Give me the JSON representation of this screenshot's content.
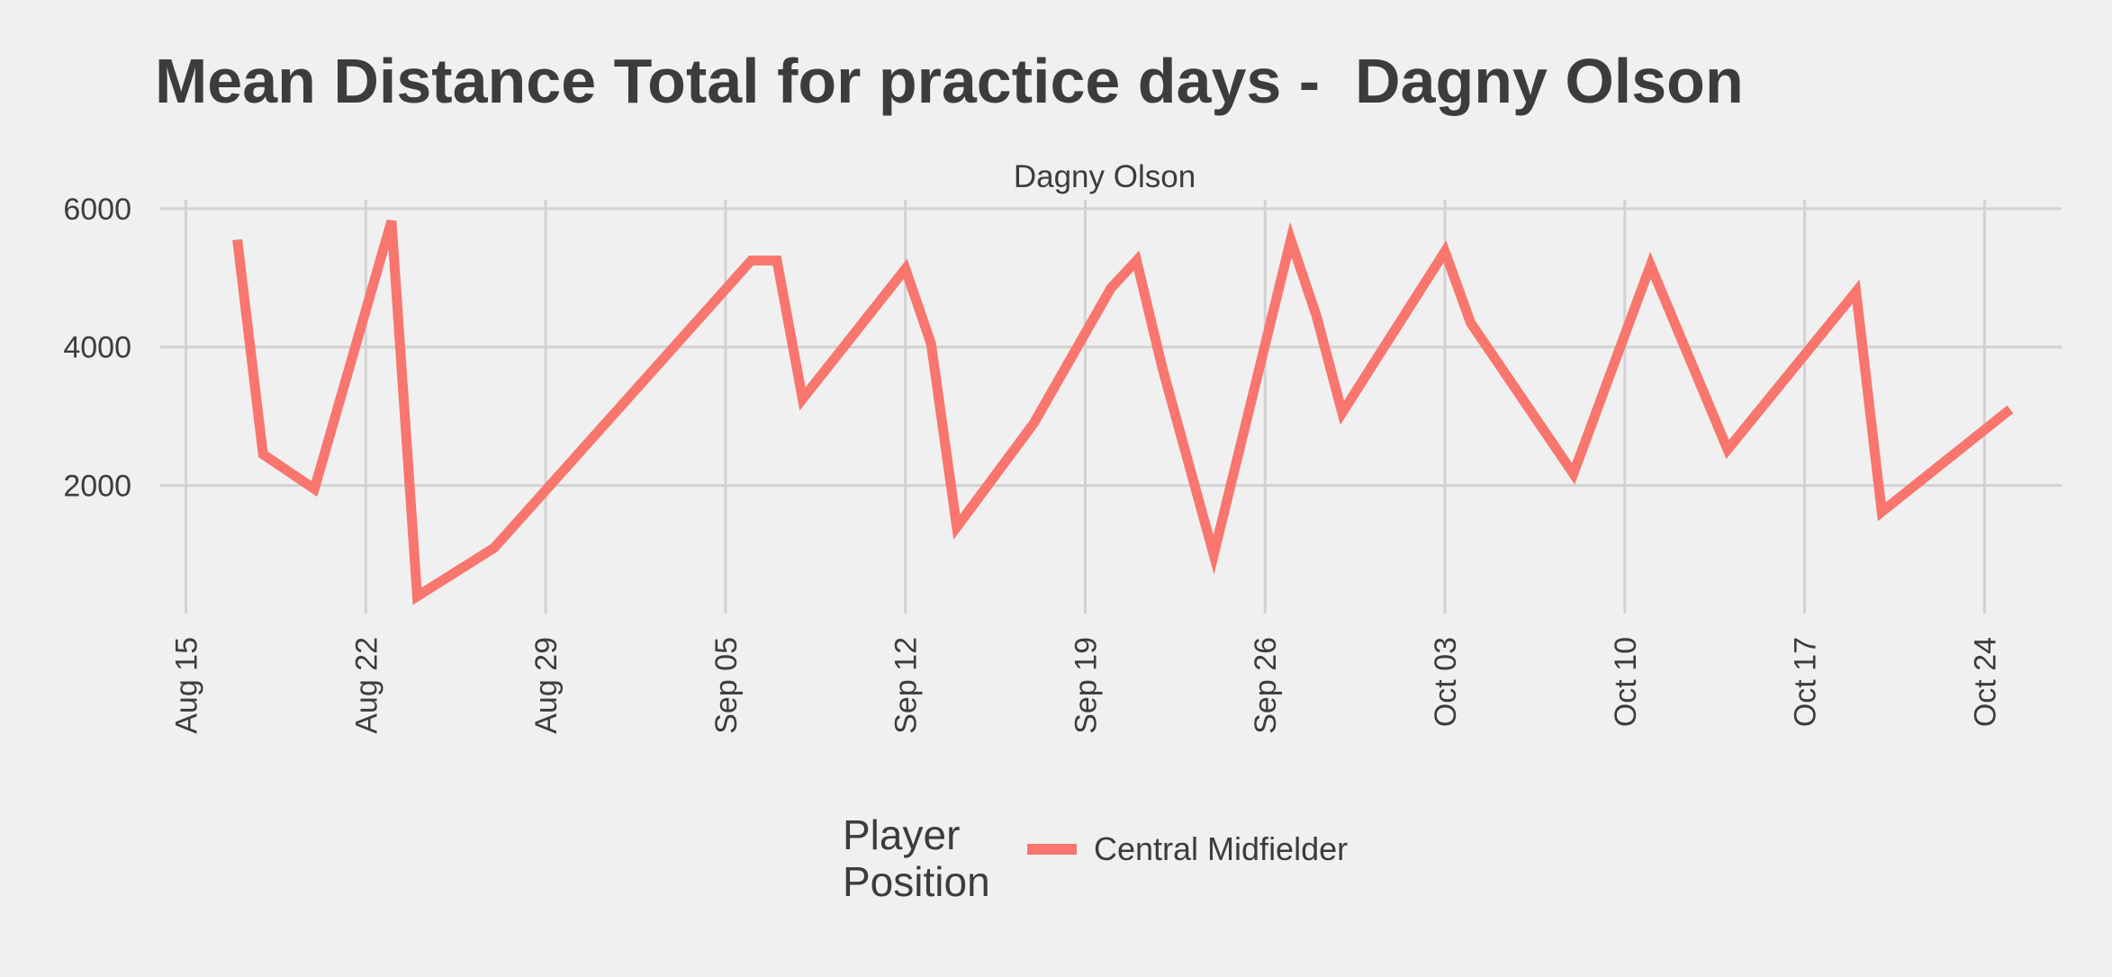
{
  "chart_data": {
    "type": "line",
    "title": "Mean Distance Total for practice days -  Dagny Olson",
    "facet_label": "Dagny Olson",
    "xlabel": "",
    "ylabel": "",
    "x_type": "date",
    "xlim": [
      "2021-08-14",
      "2021-10-27"
    ],
    "ylim": [
      150,
      6050
    ],
    "y_ticks": [
      2000,
      4000,
      6000
    ],
    "x_ticks": [
      {
        "date": "2021-08-15",
        "label": "Aug 15"
      },
      {
        "date": "2021-08-22",
        "label": "Aug 22"
      },
      {
        "date": "2021-08-29",
        "label": "Aug 29"
      },
      {
        "date": "2021-09-05",
        "label": "Sep 05"
      },
      {
        "date": "2021-09-12",
        "label": "Sep 12"
      },
      {
        "date": "2021-09-19",
        "label": "Sep 19"
      },
      {
        "date": "2021-09-26",
        "label": "Sep 26"
      },
      {
        "date": "2021-10-03",
        "label": "Oct 03"
      },
      {
        "date": "2021-10-10",
        "label": "Oct 10"
      },
      {
        "date": "2021-10-17",
        "label": "Oct 17"
      },
      {
        "date": "2021-10-24",
        "label": "Oct 24"
      }
    ],
    "grid": true,
    "legend": {
      "title": "Player Position",
      "title_lines": [
        "Player",
        "Position"
      ],
      "position": "bottom"
    },
    "series": [
      {
        "name": "Central Midfielder",
        "color": "#f8766d",
        "points": [
          {
            "x": "2021-08-17",
            "y": 5550
          },
          {
            "x": "2021-08-18",
            "y": 2450
          },
          {
            "x": "2021-08-20",
            "y": 1950
          },
          {
            "x": "2021-08-23",
            "y": 5820
          },
          {
            "x": "2021-08-24",
            "y": 400
          },
          {
            "x": "2021-08-27",
            "y": 1100
          },
          {
            "x": "2021-09-06",
            "y": 5250
          },
          {
            "x": "2021-09-07",
            "y": 5250
          },
          {
            "x": "2021-09-08",
            "y": 3250
          },
          {
            "x": "2021-09-12",
            "y": 5130
          },
          {
            "x": "2021-09-13",
            "y": 4050
          },
          {
            "x": "2021-09-14",
            "y": 1400
          },
          {
            "x": "2021-09-17",
            "y": 2900
          },
          {
            "x": "2021-09-20",
            "y": 4850
          },
          {
            "x": "2021-09-21",
            "y": 5250
          },
          {
            "x": "2021-09-22",
            "y": 3700
          },
          {
            "x": "2021-09-24",
            "y": 1000
          },
          {
            "x": "2021-09-27",
            "y": 5550
          },
          {
            "x": "2021-09-28",
            "y": 4450
          },
          {
            "x": "2021-09-29",
            "y": 3050
          },
          {
            "x": "2021-10-03",
            "y": 5380
          },
          {
            "x": "2021-10-04",
            "y": 4350
          },
          {
            "x": "2021-10-08",
            "y": 2170
          },
          {
            "x": "2021-10-11",
            "y": 5180
          },
          {
            "x": "2021-10-14",
            "y": 2520
          },
          {
            "x": "2021-10-19",
            "y": 4800
          },
          {
            "x": "2021-10-20",
            "y": 1620
          },
          {
            "x": "2021-10-25",
            "y": 3100
          }
        ]
      }
    ]
  }
}
